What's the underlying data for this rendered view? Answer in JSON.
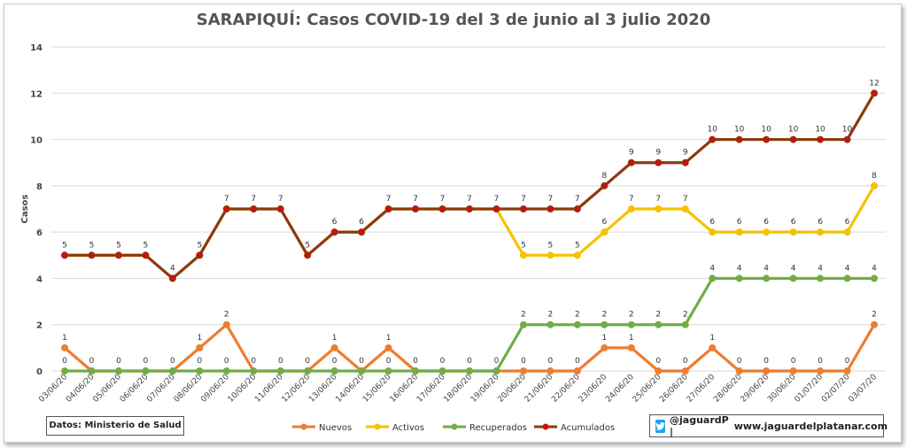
{
  "title": "SARAPIQUÍ: Casos COVID-19 del 3 de junio al 3 julio 2020",
  "source": "Datos: Ministerio de Salud",
  "brand": {
    "handle": "@jaguardP |",
    "site": "www.jaguardelplatanar.com",
    "icon": "twitter-icon"
  },
  "colors": {
    "nuevos": "#ed7d31",
    "activos": "#f5c200",
    "recuperados": "#70ad47",
    "acumulados": "#8b3a0e",
    "point_acumulados": "#cc1010"
  },
  "chart_data": {
    "type": "line",
    "title": "SARAPIQUÍ: Casos COVID-19 del 3 de junio al 3 julio 2020",
    "xlabel": "",
    "ylabel": "Casos",
    "ylim": [
      0,
      14
    ],
    "yticks": [
      0,
      2,
      4,
      6,
      8,
      10,
      12,
      14
    ],
    "grid": true,
    "legend_position": "bottom",
    "categories": [
      "03/06/20",
      "04/06/20",
      "05/06/20",
      "06/06/20",
      "07/06/20",
      "08/06/20",
      "09/06/20",
      "10/06/20",
      "11/06/20",
      "12/06/20",
      "13/06/20",
      "14/06/20",
      "15/06/20",
      "16/06/20",
      "17/06/20",
      "18/06/20",
      "19/06/20",
      "20/06/20",
      "21/06/20",
      "22/06/20",
      "23/06/20",
      "24/06/20",
      "25/06/20",
      "26/06/20",
      "27/06/20",
      "28/06/20",
      "29/06/20",
      "30/06/20",
      "01/07/20",
      "02/07/20",
      "03/07/20"
    ],
    "series": [
      {
        "name": "Nuevos",
        "color": "#ed7d31",
        "values": [
          1,
          0,
          0,
          0,
          0,
          1,
          2,
          0,
          0,
          0,
          1,
          0,
          1,
          0,
          0,
          0,
          0,
          0,
          0,
          0,
          1,
          1,
          0,
          0,
          1,
          0,
          0,
          0,
          0,
          0,
          2
        ]
      },
      {
        "name": "Activos",
        "color": "#f5c200",
        "values": [
          5,
          5,
          5,
          5,
          4,
          5,
          7,
          7,
          7,
          5,
          6,
          6,
          7,
          7,
          7,
          7,
          7,
          5,
          5,
          5,
          6,
          7,
          7,
          7,
          6,
          6,
          6,
          6,
          6,
          6,
          8
        ]
      },
      {
        "name": "Recuperados",
        "color": "#70ad47",
        "values": [
          0,
          0,
          0,
          0,
          0,
          0,
          0,
          0,
          0,
          0,
          0,
          0,
          0,
          0,
          0,
          0,
          0,
          2,
          2,
          2,
          2,
          2,
          2,
          2,
          4,
          4,
          4,
          4,
          4,
          4,
          4
        ]
      },
      {
        "name": "Acumulados",
        "color": "#8b3a0e",
        "values": [
          5,
          5,
          5,
          5,
          4,
          5,
          7,
          7,
          7,
          5,
          6,
          6,
          7,
          7,
          7,
          7,
          7,
          7,
          7,
          7,
          8,
          9,
          9,
          9,
          10,
          10,
          10,
          10,
          10,
          10,
          12
        ]
      }
    ]
  }
}
